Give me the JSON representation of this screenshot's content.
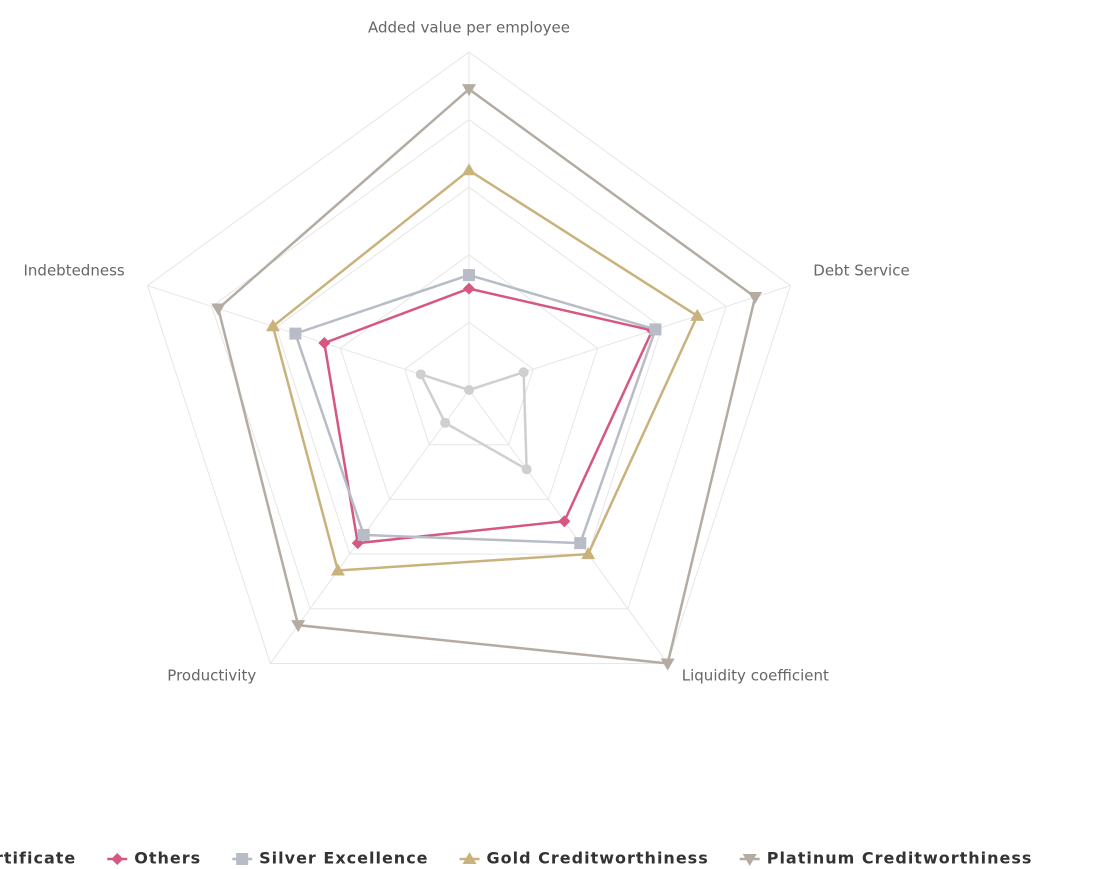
{
  "chart_data": {
    "type": "radar",
    "categories": [
      "Added value per employee",
      "Debt Service",
      "Liquidity coefficient",
      "Productivity",
      "Indebtedness"
    ],
    "ylim": [
      0,
      100
    ],
    "yticks": [
      20,
      40,
      60,
      80,
      100
    ],
    "grid": true,
    "series": [
      {
        "name": "rtificate",
        "color": "#cfcfcf",
        "marker": "circle",
        "values": [
          0,
          17,
          29,
          12,
          15
        ]
      },
      {
        "name": "Others",
        "color": "#d6577f",
        "marker": "diamond",
        "values": [
          30,
          57,
          48,
          56,
          45
        ]
      },
      {
        "name": "Silver Excellence",
        "color": "#b7bcc6",
        "marker": "square",
        "values": [
          34,
          58,
          56,
          53,
          54
        ]
      },
      {
        "name": "Gold Creditworthiness",
        "color": "#c9b27c",
        "marker": "triangle",
        "values": [
          65,
          71,
          60,
          66,
          61
        ]
      },
      {
        "name": "Platinum Creditworthiness",
        "color": "#b4aca2",
        "marker": "triangle-down",
        "values": [
          89,
          89,
          100,
          86,
          78
        ]
      }
    ]
  }
}
